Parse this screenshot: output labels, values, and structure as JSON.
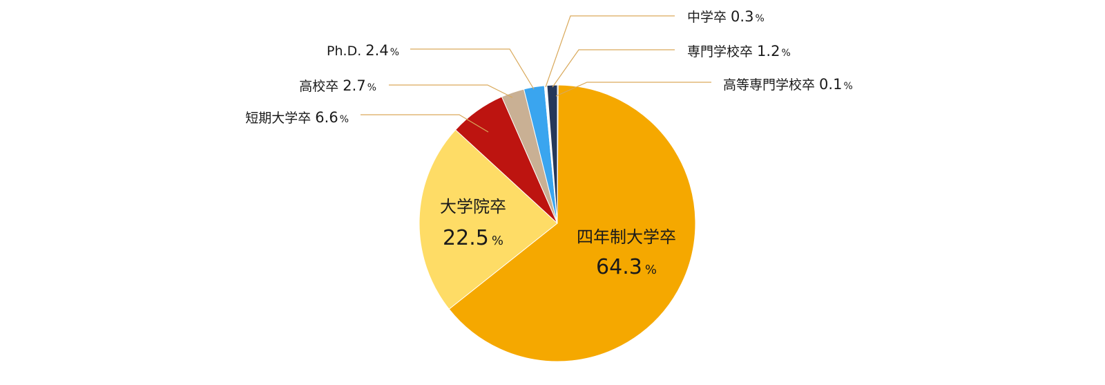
{
  "chart_data": {
    "type": "pie",
    "unit": "%",
    "slices": [
      {
        "label": "高等専門学校卒",
        "value": 0.1,
        "value_text": "0.1",
        "color": "#26385a"
      },
      {
        "label": "四年制大学卒",
        "value": 64.3,
        "value_text": "64.3",
        "color": "#f5a800"
      },
      {
        "label": "大学院卒",
        "value": 22.5,
        "value_text": "22.5",
        "color": "#fedc66"
      },
      {
        "label": "短期大学卒",
        "value": 6.6,
        "value_text": "6.6",
        "color": "#bd1410"
      },
      {
        "label": "高校卒",
        "value": 2.7,
        "value_text": "2.7",
        "color": "#c9b094"
      },
      {
        "label": "Ph.D.",
        "value": 2.4,
        "value_text": "2.4",
        "color": "#3aa5ef"
      },
      {
        "label": "中学卒",
        "value": 0.3,
        "value_text": "0.3",
        "color": "#ffffff"
      },
      {
        "label": "専門学校卒",
        "value": 1.2,
        "value_text": "1.2",
        "color": "#26385a"
      }
    ],
    "leader_line_color": "#d9a95b"
  }
}
